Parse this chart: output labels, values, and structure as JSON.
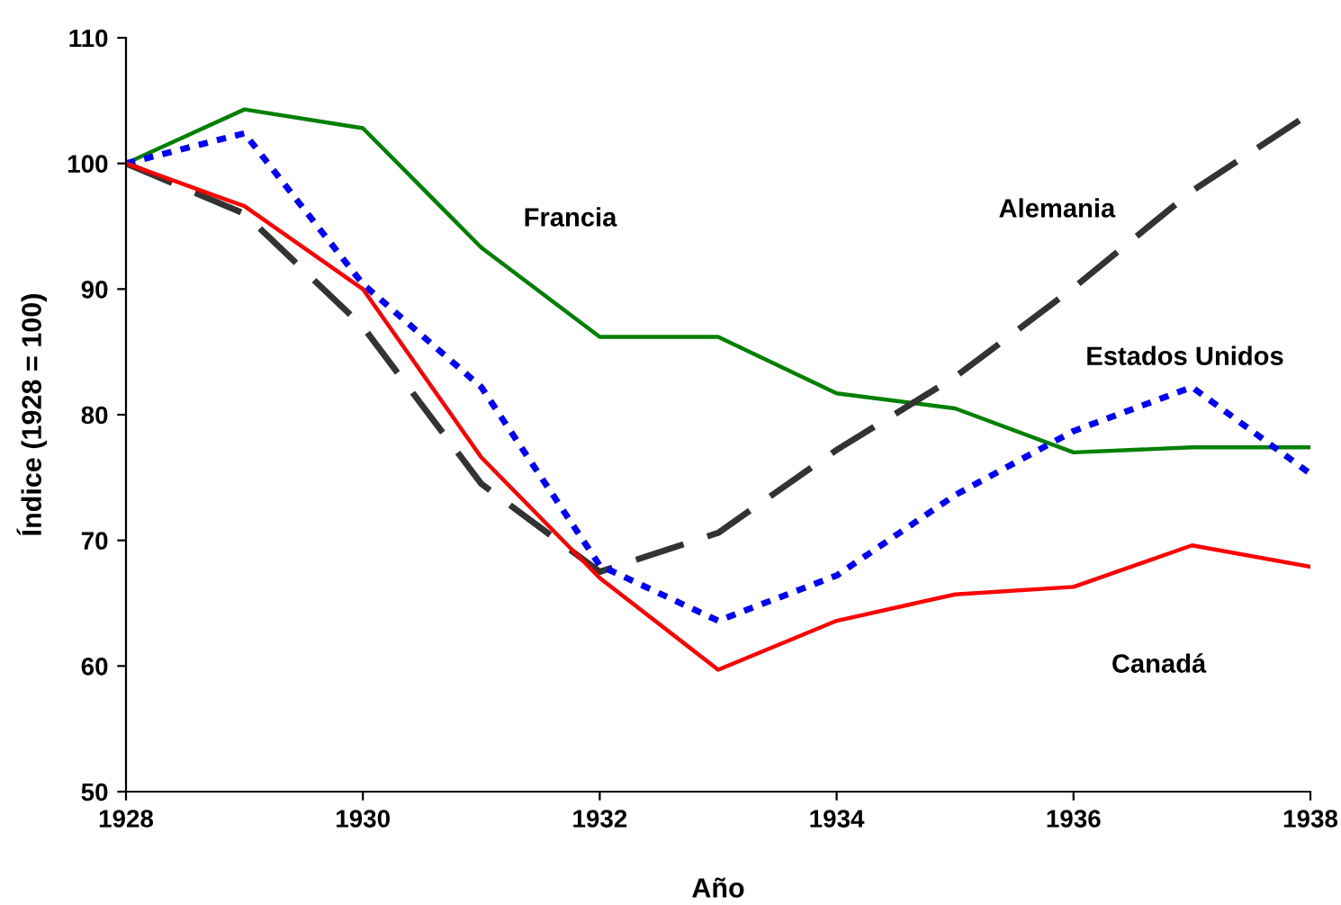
{
  "chart_data": {
    "type": "line",
    "xlabel": "Año",
    "ylabel": "Índice (1928 = 100)",
    "x": [
      1928,
      1929,
      1930,
      1931,
      1932,
      1933,
      1934,
      1935,
      1936,
      1937,
      1938
    ],
    "xlim": [
      1928,
      1938
    ],
    "xticks": [
      1928,
      1930,
      1932,
      1934,
      1936,
      1938
    ],
    "ylim": [
      50,
      110
    ],
    "yticks": [
      50,
      60,
      70,
      80,
      90,
      100,
      110
    ],
    "grid": false,
    "legend": false,
    "marker": "none",
    "series": [
      {
        "name": "Francia",
        "color": "#008000",
        "line_style": "solid",
        "values": [
          100,
          104.3,
          102.8,
          93.3,
          86.2,
          86.2,
          81.7,
          80.5,
          77.0,
          77.4,
          77.4
        ]
      },
      {
        "name": "Alemania",
        "color": "#333333",
        "line_style": "dashed",
        "values": [
          100,
          96.0,
          87.0,
          74.5,
          67.5,
          70.6,
          77.2,
          83.0,
          90.1,
          97.8,
          104.0
        ]
      },
      {
        "name": "Estados Unidos",
        "color": "#0000ff",
        "line_style": "dotted",
        "values": [
          100,
          102.4,
          90.4,
          82.2,
          68.0,
          63.6,
          67.2,
          73.6,
          78.7,
          82.2,
          75.3
        ]
      },
      {
        "name": "Canadá",
        "color": "#ff0000",
        "line_style": "solid",
        "values": [
          100,
          96.6,
          90.0,
          76.6,
          67.0,
          59.7,
          63.6,
          65.7,
          66.3,
          69.6,
          67.9
        ]
      }
    ]
  }
}
